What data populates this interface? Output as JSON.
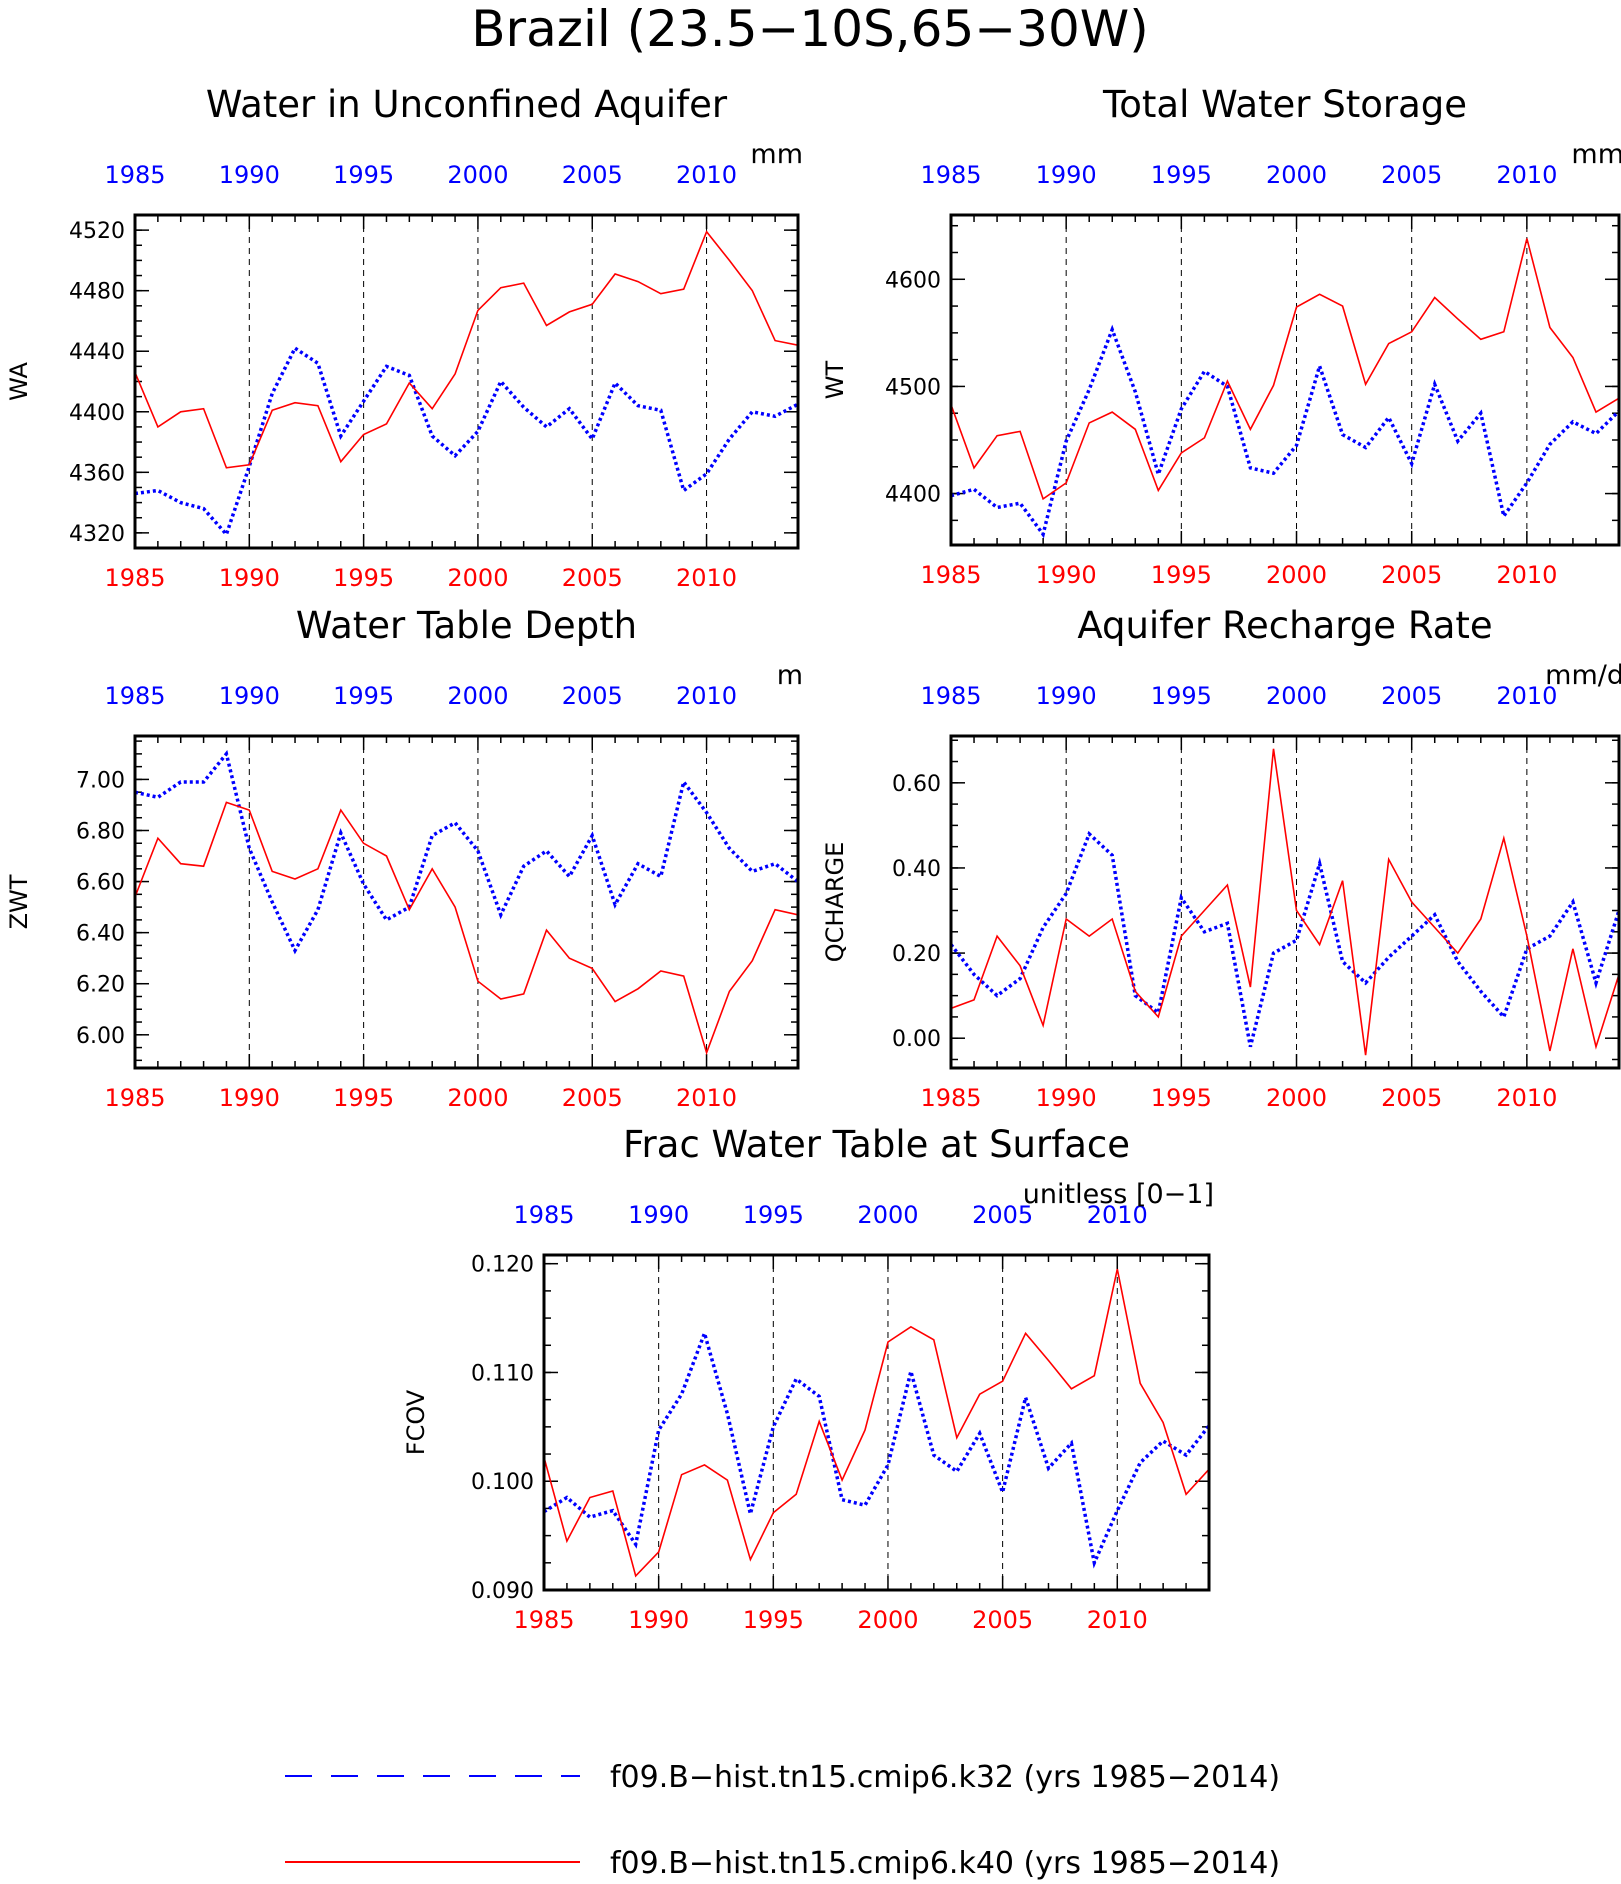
{
  "figure": {
    "title": "Brazil (23.5−10S,65−30W)",
    "colors": {
      "k32": "#0000ff",
      "k40": "#ff0000",
      "axis": "#000000",
      "grid": "#000000"
    }
  },
  "legend": {
    "items": [
      {
        "label": "f09.B−hist.tn15.cmip6.k32 (yrs 1985−2014)",
        "color": "#0000ff",
        "style": "dashed"
      },
      {
        "label": "f09.B−hist.tn15.cmip6.k40 (yrs 1985−2014)",
        "color": "#ff0000",
        "style": "solid"
      }
    ]
  },
  "chart_data": [
    {
      "id": "wa",
      "type": "line",
      "title": "Water in Unconfined Aquifer",
      "ylabel": "WA",
      "units": "mm",
      "xlim": [
        1985,
        2014
      ],
      "xticks": [
        1985,
        1990,
        1995,
        2000,
        2005,
        2010
      ],
      "ylim": [
        4310,
        4530
      ],
      "yticks": [
        4320,
        4360,
        4400,
        4440,
        4480,
        4520
      ],
      "ytick_labels": [
        "4320",
        "4360",
        "4400",
        "4440",
        "4480",
        "4520"
      ],
      "vlines": [
        1990,
        1995,
        2000,
        2005,
        2010
      ],
      "x": [
        1985,
        1986,
        1987,
        1988,
        1989,
        1990,
        1991,
        1992,
        1993,
        1994,
        1995,
        1996,
        1997,
        1998,
        1999,
        2000,
        2001,
        2002,
        2003,
        2004,
        2005,
        2006,
        2007,
        2008,
        2009,
        2010,
        2011,
        2012,
        2013,
        2014
      ],
      "series": [
        {
          "name": "f09.B−hist.tn15.cmip6.k32",
          "color": "#0000ff",
          "style": "dotted",
          "values": [
            4346,
            4348,
            4340,
            4336,
            4319,
            4364,
            4412,
            4442,
            4432,
            4384,
            4407,
            4430,
            4424,
            4384,
            4371,
            4387,
            4420,
            4403,
            4390,
            4402,
            4382,
            4419,
            4404,
            4401,
            4348,
            4359,
            4382,
            4400,
            4397,
            4405
          ]
        },
        {
          "name": "f09.B−hist.tn15.cmip6.k40",
          "color": "#ff0000",
          "style": "solid",
          "values": [
            4426,
            4390,
            4400,
            4402,
            4363,
            4365,
            4401,
            4406,
            4404,
            4367,
            4385,
            4392,
            4419,
            4402,
            4425,
            4467,
            4482,
            4485,
            4457,
            4466,
            4471,
            4491,
            4486,
            4478,
            4481,
            4519,
            4500,
            4480,
            4447,
            4444
          ]
        }
      ]
    },
    {
      "id": "wt",
      "type": "line",
      "title": "Total Water Storage",
      "ylabel": "WT",
      "units": "mm",
      "xlim": [
        1985,
        2014
      ],
      "xticks": [
        1985,
        1990,
        1995,
        2000,
        2005,
        2010
      ],
      "ylim": [
        4352,
        4660
      ],
      "yticks": [
        4400,
        4500,
        4600
      ],
      "ytick_labels": [
        "4400",
        "4500",
        "4600"
      ],
      "vlines": [
        1990,
        1995,
        2000,
        2005,
        2010
      ],
      "x": [
        1985,
        1986,
        1987,
        1988,
        1989,
        1990,
        1991,
        1992,
        1993,
        1994,
        1995,
        1996,
        1997,
        1998,
        1999,
        2000,
        2001,
        2002,
        2003,
        2004,
        2005,
        2006,
        2007,
        2008,
        2009,
        2010,
        2011,
        2012,
        2013,
        2014
      ],
      "series": [
        {
          "name": "f09.B−hist.tn15.cmip6.k32",
          "color": "#0000ff",
          "style": "dotted",
          "values": [
            4398,
            4404,
            4387,
            4391,
            4362,
            4449,
            4497,
            4553,
            4495,
            4418,
            4479,
            4514,
            4500,
            4424,
            4419,
            4445,
            4519,
            4455,
            4443,
            4471,
            4428,
            4502,
            4449,
            4475,
            4379,
            4410,
            4446,
            4467,
            4456,
            4477
          ]
        },
        {
          "name": "f09.B−hist.tn15.cmip6.k40",
          "color": "#ff0000",
          "style": "solid",
          "values": [
            4483,
            4424,
            4454,
            4458,
            4395,
            4410,
            4466,
            4476,
            4460,
            4403,
            4438,
            4452,
            4505,
            4460,
            4501,
            4574,
            4586,
            4575,
            4502,
            4540,
            4551,
            4583,
            4563,
            4544,
            4551,
            4638,
            4555,
            4527,
            4476,
            4489
          ]
        }
      ]
    },
    {
      "id": "zwt",
      "type": "line",
      "title": "Water Table Depth",
      "ylabel": "ZWT",
      "units": "m",
      "xlim": [
        1985,
        2014
      ],
      "xticks": [
        1985,
        1990,
        1995,
        2000,
        2005,
        2010
      ],
      "ylim": [
        5.87,
        7.17
      ],
      "yticks": [
        6.0,
        6.2,
        6.4,
        6.6,
        6.8,
        7.0
      ],
      "ytick_labels": [
        "6.00",
        "6.20",
        "6.40",
        "6.60",
        "6.80",
        "7.00"
      ],
      "vlines": [
        1990,
        1995,
        2000,
        2005,
        2010
      ],
      "x": [
        1985,
        1986,
        1987,
        1988,
        1989,
        1990,
        1991,
        1992,
        1993,
        1994,
        1995,
        1996,
        1997,
        1998,
        1999,
        2000,
        2001,
        2002,
        2003,
        2004,
        2005,
        2006,
        2007,
        2008,
        2009,
        2010,
        2011,
        2012,
        2013,
        2014
      ],
      "series": [
        {
          "name": "f09.B−hist.tn15.cmip6.k32",
          "color": "#0000ff",
          "style": "dotted",
          "values": [
            6.95,
            6.93,
            6.99,
            6.99,
            7.1,
            6.73,
            6.52,
            6.33,
            6.49,
            6.79,
            6.59,
            6.45,
            6.5,
            6.78,
            6.83,
            6.72,
            6.47,
            6.66,
            6.72,
            6.62,
            6.78,
            6.51,
            6.67,
            6.62,
            6.99,
            6.87,
            6.73,
            6.64,
            6.67,
            6.6
          ]
        },
        {
          "name": "f09.B−hist.tn15.cmip6.k40",
          "color": "#ff0000",
          "style": "solid",
          "values": [
            6.54,
            6.77,
            6.67,
            6.66,
            6.91,
            6.88,
            6.64,
            6.61,
            6.65,
            6.88,
            6.75,
            6.7,
            6.49,
            6.65,
            6.5,
            6.21,
            6.14,
            6.16,
            6.41,
            6.3,
            6.26,
            6.13,
            6.18,
            6.25,
            6.23,
            5.93,
            6.17,
            6.29,
            6.49,
            6.47
          ]
        }
      ]
    },
    {
      "id": "qcharge",
      "type": "line",
      "title": "Aquifer Recharge Rate",
      "ylabel": "QCHARGE",
      "units": "mm/d",
      "xlim": [
        1985,
        2014
      ],
      "xticks": [
        1985,
        1990,
        1995,
        2000,
        2005,
        2010
      ],
      "ylim": [
        -0.07,
        0.71
      ],
      "yticks": [
        0.0,
        0.2,
        0.4,
        0.6
      ],
      "ytick_labels": [
        "0.00",
        "0.20",
        "0.40",
        "0.60"
      ],
      "vlines": [
        1990,
        1995,
        2000,
        2005,
        2010
      ],
      "x": [
        1985,
        1986,
        1987,
        1988,
        1989,
        1990,
        1991,
        1992,
        1993,
        1994,
        1995,
        1996,
        1997,
        1998,
        1999,
        2000,
        2001,
        2002,
        2003,
        2004,
        2005,
        2006,
        2007,
        2008,
        2009,
        2010,
        2011,
        2012,
        2013,
        2014
      ],
      "series": [
        {
          "name": "f09.B−hist.tn15.cmip6.k32",
          "color": "#0000ff",
          "style": "dotted",
          "values": [
            0.22,
            0.15,
            0.1,
            0.14,
            0.26,
            0.34,
            0.48,
            0.43,
            0.1,
            0.06,
            0.33,
            0.25,
            0.27,
            -0.02,
            0.2,
            0.23,
            0.41,
            0.18,
            0.13,
            0.19,
            0.24,
            0.29,
            0.18,
            0.11,
            0.05,
            0.21,
            0.24,
            0.32,
            0.13,
            0.3
          ]
        },
        {
          "name": "f09.B−hist.tn15.cmip6.k40",
          "color": "#ff0000",
          "style": "solid",
          "values": [
            0.07,
            0.09,
            0.24,
            0.17,
            0.03,
            0.28,
            0.24,
            0.28,
            0.11,
            0.05,
            0.24,
            0.3,
            0.36,
            0.12,
            0.68,
            0.3,
            0.22,
            0.37,
            -0.04,
            0.42,
            0.32,
            0.26,
            0.2,
            0.28,
            0.47,
            0.24,
            -0.03,
            0.21,
            -0.02,
            0.15
          ]
        }
      ]
    },
    {
      "id": "fcov",
      "type": "line",
      "title": "Frac Water Table at Surface",
      "ylabel": "FCOV",
      "units": "unitless [0−1]",
      "xlim": [
        1985,
        2014
      ],
      "xticks": [
        1985,
        1990,
        1995,
        2000,
        2005,
        2010
      ],
      "ylim": [
        0.09,
        0.1208
      ],
      "yticks": [
        0.09,
        0.1,
        0.11,
        0.12
      ],
      "ytick_labels": [
        "0.090",
        "0.100",
        "0.110",
        "0.120"
      ],
      "vlines": [
        1990,
        1995,
        2000,
        2005,
        2010
      ],
      "x": [
        1985,
        1986,
        1987,
        1988,
        1989,
        1990,
        1991,
        1992,
        1993,
        1994,
        1995,
        1996,
        1997,
        1998,
        1999,
        2000,
        2001,
        2002,
        2003,
        2004,
        2005,
        2006,
        2007,
        2008,
        2009,
        2010,
        2011,
        2012,
        2013,
        2014
      ],
      "series": [
        {
          "name": "f09.B−hist.tn15.cmip6.k32",
          "color": "#0000ff",
          "style": "dotted",
          "values": [
            0.0972,
            0.0985,
            0.0967,
            0.0973,
            0.0942,
            0.1047,
            0.108,
            0.1136,
            0.1062,
            0.097,
            0.105,
            0.1094,
            0.1078,
            0.0983,
            0.0978,
            0.1015,
            0.1101,
            0.1024,
            0.1009,
            0.1044,
            0.099,
            0.1077,
            0.1012,
            0.1035,
            0.0925,
            0.0973,
            0.1017,
            0.1037,
            0.1024,
            0.1051
          ]
        },
        {
          "name": "f09.B−hist.tn15.cmip6.k40",
          "color": "#ff0000",
          "style": "solid",
          "values": [
            0.1022,
            0.0945,
            0.0985,
            0.0991,
            0.0913,
            0.0935,
            0.1006,
            0.1015,
            0.1001,
            0.0928,
            0.0971,
            0.0988,
            0.1055,
            0.1001,
            0.1047,
            0.1128,
            0.1142,
            0.113,
            0.104,
            0.108,
            0.1092,
            0.1136,
            0.1111,
            0.1085,
            0.1097,
            0.1195,
            0.109,
            0.1054,
            0.0988,
            0.1011
          ]
        }
      ]
    }
  ]
}
